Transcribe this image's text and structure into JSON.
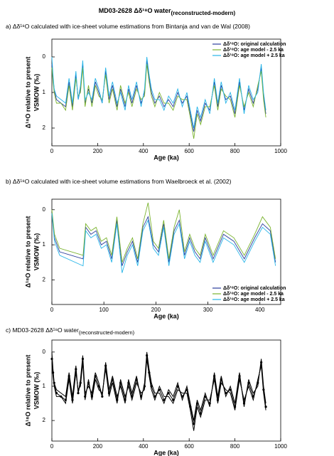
{
  "title": "MD03-2628 Δδ¹⁸O water",
  "title_sub": "(reconstructed-modern)",
  "chart_data": [
    {
      "type": "line",
      "title": "a) Δδ¹⁸O calculated with ice-sheet volume estimations from Bintanja and van de Wal (2008)",
      "xlabel": "Age (ka)",
      "ylabel": "Δ¹⁸O relative to present",
      "ylabel2": "VSMOW (‰)",
      "xlim": [
        0,
        1000
      ],
      "xticks": [
        0,
        200,
        400,
        600,
        800,
        1000
      ],
      "ylim": [
        2.5,
        -0.5
      ],
      "yticks": [
        0,
        1,
        2
      ],
      "legend": "upper right",
      "x": [
        0,
        5,
        10,
        20,
        40,
        60,
        75,
        90,
        105,
        115,
        125,
        135,
        145,
        160,
        175,
        190,
        205,
        220,
        235,
        250,
        265,
        285,
        300,
        320,
        335,
        350,
        370,
        390,
        405,
        415,
        425,
        435,
        450,
        470,
        490,
        510,
        530,
        550,
        570,
        590,
        605,
        620,
        635,
        650,
        670,
        690,
        710,
        725,
        740,
        760,
        780,
        800,
        820,
        840,
        860,
        880,
        900,
        915,
        925,
        935
      ],
      "series": [
        {
          "name": "Δδ¹⁸O: original calculation",
          "color": "#2b3d9c",
          "values": [
            0.2,
            0.6,
            0.9,
            1.2,
            1.3,
            1.4,
            0.7,
            1.4,
            0.5,
            1.2,
            0.9,
            0.2,
            1.3,
            0.9,
            1.3,
            0.7,
            1.0,
            1.3,
            0.4,
            1.2,
            0.8,
            1.4,
            0.9,
            1.4,
            0.9,
            1.3,
            0.8,
            1.3,
            1.0,
            0.1,
            0.6,
            1.0,
            1.3,
            1.1,
            1.4,
            1.2,
            1.4,
            1.0,
            1.3,
            1.1,
            1.6,
            2.1,
            1.5,
            1.8,
            1.3,
            1.5,
            0.7,
            1.4,
            0.8,
            1.2,
            1.1,
            1.6,
            0.7,
            1.5,
            0.9,
            1.3,
            0.9,
            0.3,
            1.1,
            1.6
          ]
        },
        {
          "name": "Δδ¹⁸O: age model - 2.5 ka",
          "color": "#7ab32e",
          "values": [
            0.3,
            0.7,
            1.0,
            1.3,
            1.3,
            1.5,
            0.8,
            1.5,
            0.6,
            1.1,
            1.0,
            0.3,
            1.4,
            0.8,
            1.4,
            0.8,
            1.1,
            1.2,
            0.5,
            1.3,
            0.9,
            1.5,
            0.8,
            1.3,
            1.0,
            1.4,
            0.9,
            1.2,
            1.1,
            0.2,
            0.7,
            1.1,
            1.4,
            1.0,
            1.3,
            1.3,
            1.5,
            1.1,
            1.2,
            1.2,
            1.7,
            2.3,
            1.6,
            1.9,
            1.4,
            1.4,
            0.8,
            1.5,
            0.9,
            1.1,
            1.2,
            1.7,
            0.8,
            1.4,
            1.0,
            1.4,
            0.8,
            0.4,
            1.2,
            1.7
          ]
        },
        {
          "name": "Δδ¹⁸O: age model + 2.5 ka",
          "color": "#27b5e8",
          "values": [
            0.0,
            0.5,
            0.9,
            1.1,
            1.2,
            1.3,
            0.6,
            1.3,
            0.4,
            1.2,
            0.8,
            0.1,
            1.2,
            1.0,
            1.2,
            0.6,
            0.9,
            1.3,
            0.3,
            1.1,
            0.7,
            1.3,
            1.0,
            1.5,
            0.8,
            1.2,
            0.7,
            1.4,
            0.9,
            0.0,
            0.5,
            0.9,
            1.2,
            1.2,
            1.5,
            1.1,
            1.3,
            0.9,
            1.4,
            1.0,
            1.5,
            2.0,
            1.4,
            1.7,
            1.2,
            1.6,
            0.6,
            1.3,
            0.7,
            1.3,
            1.0,
            1.5,
            0.6,
            1.6,
            0.8,
            1.2,
            1.0,
            0.2,
            1.0,
            1.5
          ]
        }
      ]
    },
    {
      "type": "line",
      "title": "b) Δδ¹⁸O calculated with ice-sheet volume estimations from Waelbroeck et al. (2002)",
      "xlabel": "Age (ka)",
      "ylabel": "Δ¹⁸O relative to present",
      "ylabel2": "VSMOW (‰)",
      "xlim": [
        0,
        440
      ],
      "xticks": [
        0,
        100,
        200,
        300,
        400
      ],
      "ylim": [
        2.7,
        -0.3
      ],
      "yticks": [
        0,
        1,
        2
      ],
      "legend": "lower right",
      "x": [
        0,
        5,
        15,
        60,
        65,
        75,
        85,
        95,
        105,
        115,
        125,
        135,
        145,
        155,
        165,
        175,
        185,
        195,
        205,
        215,
        225,
        235,
        245,
        255,
        265,
        275,
        285,
        295,
        310,
        330,
        350,
        370,
        390,
        405,
        420,
        430
      ],
      "series": [
        {
          "name": "Δδ¹⁸O: original calculation",
          "color": "#2b3d9c",
          "values": [
            0.1,
            0.8,
            1.2,
            1.4,
            0.5,
            0.7,
            0.6,
            1.0,
            0.9,
            1.4,
            0.3,
            1.6,
            1.2,
            0.9,
            1.5,
            0.5,
            0.2,
            1.0,
            1.2,
            0.4,
            1.5,
            0.6,
            0.3,
            1.3,
            0.8,
            1.2,
            1.4,
            0.8,
            1.4,
            0.7,
            0.9,
            1.4,
            0.8,
            0.4,
            0.6,
            1.5
          ]
        },
        {
          "name": "Δδ¹⁸O: age model - 2.5 ka",
          "color": "#7ab32e",
          "values": [
            0.0,
            0.7,
            1.1,
            1.3,
            0.4,
            0.6,
            0.5,
            0.9,
            0.8,
            1.3,
            0.2,
            1.5,
            1.1,
            0.8,
            1.4,
            0.4,
            -0.2,
            0.9,
            1.1,
            0.3,
            1.4,
            0.5,
            0.0,
            1.2,
            0.7,
            1.1,
            1.3,
            0.7,
            1.3,
            0.6,
            0.8,
            1.3,
            0.7,
            0.2,
            0.5,
            1.4
          ]
        },
        {
          "name": "Δδ¹⁸O: age model + 2.5 ka",
          "color": "#27b5e8",
          "values": [
            0.1,
            0.9,
            1.3,
            1.6,
            0.6,
            0.8,
            0.7,
            1.1,
            1.0,
            1.5,
            0.4,
            1.8,
            1.3,
            1.0,
            1.6,
            0.6,
            0.3,
            1.1,
            1.3,
            0.5,
            1.6,
            0.7,
            0.4,
            1.4,
            0.9,
            1.3,
            1.5,
            0.9,
            1.5,
            0.8,
            1.0,
            1.5,
            0.9,
            0.5,
            0.7,
            1.6
          ]
        }
      ]
    },
    {
      "type": "line",
      "title": "c) MD03-2628 Δδ¹⁸O water",
      "title_sub": "(reconstructed-modern)",
      "xlabel": "Age (ka)",
      "ylabel": "Δ¹⁸O relative to present",
      "ylabel2": "VSMOW (‰)",
      "xlim": [
        0,
        1000
      ],
      "xticks": [
        0,
        200,
        400,
        600,
        800,
        1000
      ],
      "ylim": [
        2.6,
        -0.35
      ],
      "yticks": [
        0,
        1,
        2
      ],
      "x": [
        0,
        5,
        10,
        20,
        40,
        60,
        75,
        90,
        105,
        115,
        125,
        135,
        145,
        160,
        175,
        190,
        205,
        220,
        235,
        250,
        265,
        285,
        300,
        320,
        335,
        350,
        370,
        390,
        405,
        415,
        425,
        435,
        450,
        470,
        490,
        510,
        530,
        550,
        570,
        590,
        605,
        620,
        635,
        650,
        670,
        690,
        710,
        725,
        740,
        760,
        780,
        800,
        820,
        840,
        860,
        880,
        900,
        915,
        925,
        935
      ],
      "series": [
        {
          "color": "#000000",
          "markers": true,
          "values": [
            0.2,
            0.6,
            0.9,
            1.2,
            1.3,
            1.4,
            0.7,
            1.4,
            0.5,
            1.2,
            0.9,
            0.2,
            1.3,
            0.9,
            1.3,
            0.7,
            1.0,
            1.3,
            0.4,
            1.2,
            0.8,
            1.4,
            0.9,
            1.4,
            0.9,
            1.3,
            0.8,
            1.3,
            1.0,
            0.1,
            0.6,
            1.0,
            1.3,
            1.1,
            1.4,
            1.2,
            1.4,
            1.0,
            1.3,
            1.1,
            1.6,
            2.1,
            1.5,
            1.8,
            1.3,
            1.5,
            0.7,
            1.4,
            0.8,
            1.2,
            1.1,
            1.6,
            0.7,
            1.5,
            0.9,
            1.3,
            0.9,
            0.3,
            1.1,
            1.6
          ]
        },
        {
          "color": "#000000",
          "values": [
            0.3,
            0.7,
            1.0,
            1.3,
            1.3,
            1.5,
            0.8,
            1.5,
            0.6,
            1.1,
            1.0,
            0.3,
            1.4,
            0.8,
            1.4,
            0.8,
            1.1,
            1.2,
            0.5,
            1.3,
            0.9,
            1.5,
            0.8,
            1.3,
            1.0,
            1.4,
            0.9,
            1.2,
            1.1,
            0.2,
            0.7,
            1.1,
            1.4,
            1.0,
            1.3,
            1.3,
            1.5,
            1.1,
            1.2,
            1.2,
            1.7,
            2.3,
            1.6,
            1.9,
            1.4,
            1.4,
            0.8,
            1.5,
            0.9,
            1.1,
            1.2,
            1.7,
            0.8,
            1.4,
            1.0,
            1.4,
            0.8,
            0.4,
            1.2,
            1.7
          ]
        },
        {
          "color": "#000000",
          "values": [
            0.0,
            0.5,
            0.9,
            1.1,
            1.2,
            1.3,
            0.6,
            1.3,
            0.4,
            1.2,
            0.8,
            0.1,
            1.2,
            1.0,
            1.2,
            0.6,
            0.9,
            1.3,
            0.3,
            1.1,
            0.7,
            1.3,
            1.0,
            1.5,
            0.8,
            1.2,
            0.7,
            1.4,
            0.9,
            0.0,
            0.5,
            0.9,
            1.2,
            1.2,
            1.5,
            1.1,
            1.3,
            0.9,
            1.4,
            1.0,
            1.5,
            2.0,
            1.4,
            1.7,
            1.2,
            1.6,
            0.6,
            1.3,
            0.7,
            1.3,
            1.0,
            1.5,
            0.6,
            1.6,
            0.8,
            1.2,
            1.0,
            0.2,
            1.0,
            1.5
          ]
        }
      ]
    }
  ]
}
